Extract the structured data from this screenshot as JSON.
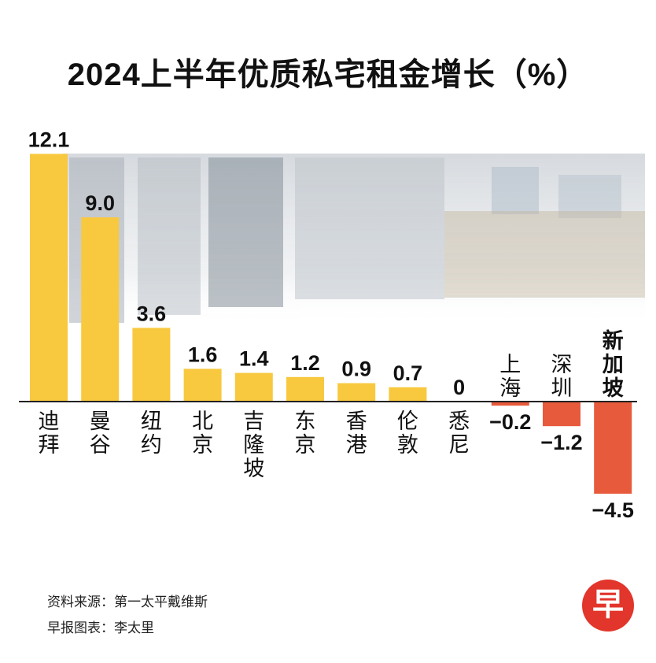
{
  "title": "2024上半年优质私宅租金增长（%）",
  "source": "资料来源：第一太平戴维斯",
  "credit": "早报图表：李太里",
  "logo_text": "早",
  "colors": {
    "positive": "#f8c93f",
    "negative": "#e85a3c",
    "axis": "#222222"
  },
  "chart_data": {
    "type": "bar",
    "title": "2024上半年优质私宅租金增长（%）",
    "categories": [
      "迪拜",
      "曼谷",
      "纽约",
      "北京",
      "吉隆坡",
      "东京",
      "香港",
      "伦敦",
      "悉尼",
      "上海",
      "深圳",
      "新加坡"
    ],
    "values": [
      12.1,
      9.0,
      3.6,
      1.6,
      1.4,
      1.2,
      0.9,
      0.7,
      0,
      -0.2,
      -1.2,
      -4.5
    ],
    "value_labels": [
      "12.1",
      "9.0",
      "3.6",
      "1.6",
      "1.4",
      "1.2",
      "0.9",
      "0.7",
      "0",
      "−0.2",
      "−1.2",
      "−4.5"
    ],
    "highlight": "新加坡",
    "unit": "%",
    "ylim": [
      -4.5,
      12.1
    ],
    "grid": false,
    "legend": "none"
  }
}
